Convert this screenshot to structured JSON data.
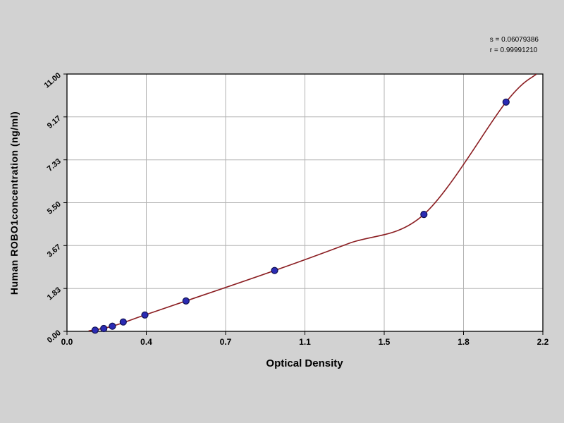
{
  "background_color": "#d2d2d2",
  "chart_data": {
    "type": "scatter",
    "title": "",
    "xlabel": "Optical Density",
    "ylabel": "Human ROBO1concentration (ng/ml)",
    "x_ticks": [
      "0.0",
      "0.4",
      "0.7",
      "1.1",
      "1.5",
      "1.8",
      "2.2"
    ],
    "y_ticks": [
      "0.00",
      "1.83",
      "3.67",
      "5.50",
      "7.33",
      "9.17",
      "11.00"
    ],
    "xlim": [
      0,
      2.2
    ],
    "ylim": [
      0,
      11
    ],
    "grid": true,
    "legend": "none",
    "annotations": {
      "s_line": "s = 0.06079386",
      "r_line": "r = 0.99991210"
    },
    "series": [
      {
        "name": "standard-points",
        "type": "scatter",
        "x": [
          0.13,
          0.17,
          0.21,
          0.26,
          0.36,
          0.55,
          0.96,
          1.65,
          2.03
        ],
        "y": [
          0.05,
          0.12,
          0.22,
          0.4,
          0.7,
          1.3,
          2.6,
          5.0,
          9.8
        ]
      },
      {
        "name": "fitted-curve",
        "type": "line",
        "x": [
          0.1,
          0.21,
          0.36,
          0.55,
          0.96,
          1.3,
          1.65,
          2.03,
          2.17
        ],
        "y": [
          0.02,
          0.22,
          0.7,
          1.3,
          2.6,
          3.75,
          5.0,
          9.8,
          11.0
        ]
      }
    ],
    "colors": {
      "curve": "#8b1e22",
      "point_fill": "#2b2bb4",
      "point_edge": "#10104f",
      "grid": "#b3b3b3",
      "plot_bg": "#ffffff",
      "frame": "#000000"
    }
  }
}
